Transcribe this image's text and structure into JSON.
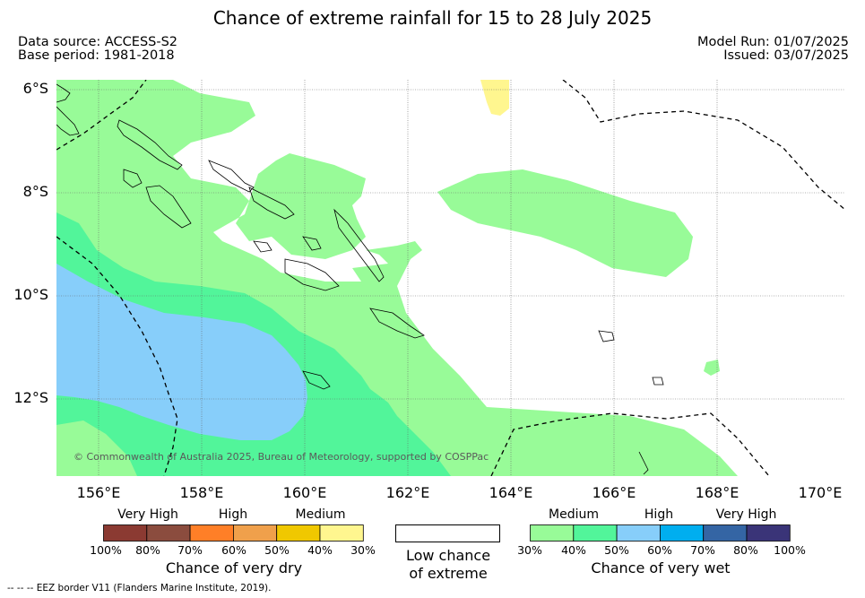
{
  "title": "Chance of extreme rainfall for 15 to 28 July 2025",
  "data_source": "Data source: ACCESS-S2",
  "base_period": "Base period: 1981-2018",
  "model_run": "Model Run: 01/07/2025",
  "issued": "Issued: 03/07/2025",
  "lat_labels": [
    "6°S",
    "8°S",
    "10°S",
    "12°S"
  ],
  "lon_labels": [
    "156°E",
    "158°E",
    "160°E",
    "162°E",
    "164°E",
    "166°E",
    "168°E",
    "170°E"
  ],
  "copyright": "© Commonwealth of Australia 2025, Bureau of Meteorology, supported by COSPPac",
  "footer": "-- -- -- EEZ border V11 (Flanders Marine Institute, 2019).",
  "legend_dry": {
    "categories": [
      "Very High",
      "High",
      "Medium"
    ],
    "ticks": [
      "100%",
      "80%",
      "70%",
      "60%",
      "50%",
      "40%",
      "30%"
    ],
    "colors": [
      "#8b3a32",
      "#8b4c3e",
      "#ff7f27",
      "#f0a04b",
      "#f0c800",
      "#fff68f"
    ],
    "caption": "Chance of very dry"
  },
  "legend_neutral": {
    "caption_line1": "Low chance",
    "caption_line2": "of extreme",
    "color": "#ffffff"
  },
  "legend_wet": {
    "categories": [
      "Medium",
      "High",
      "Very High"
    ],
    "ticks": [
      "30%",
      "40%",
      "50%",
      "60%",
      "70%",
      "80%",
      "100%"
    ],
    "colors": [
      "#98fb98",
      "#52f59a",
      "#87cefa",
      "#00aeef",
      "#3465a4",
      "#3a3478"
    ],
    "caption": "Chance of very wet"
  },
  "map_colors": {
    "wet_medium": "#98fb98",
    "wet_high_low": "#52f59a",
    "wet_high": "#87cefa",
    "dry_medium": "#fff68f"
  }
}
